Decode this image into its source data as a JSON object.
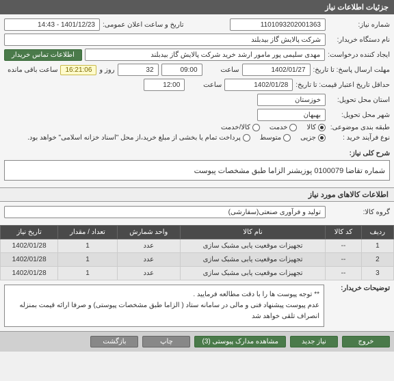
{
  "header": {
    "title": "جزئیات اطلاعات نیاز"
  },
  "fields": {
    "need_no_lbl": "شماره نیاز:",
    "need_no": "1101093202001363",
    "announce_lbl": "تاریخ و ساعت اعلان عمومی:",
    "announce_val": "1401/12/23 - 14:43",
    "org_name_lbl": "نام دستگاه خریدار:",
    "org_name": "شرکت پالایش گاز بیدبلند",
    "creator_lbl": "ایجاد کننده درخواست:",
    "creator": "مهدی سلیمی پور مامور ارشد خرید شرکت پالایش گاز بیدبلند",
    "contact_btn": "اطلاعات تماس خریدار",
    "reply_deadline_lbl": "مهلت ارسال پاسخ: تا تاریخ:",
    "reply_date": "1402/01/27",
    "hour_lbl": "ساعت",
    "reply_time": "09:00",
    "days_remain": "32",
    "days_txt": "روز و",
    "timer": "16:21:06",
    "remain_txt": "ساعت باقی مانده",
    "price_valid_lbl": "حداقل تاریخ اعتبار قیمت: تا تاریخ:",
    "price_date": "1402/01/28",
    "price_time": "12:00",
    "province_lbl": "استان محل تحویل:",
    "province": "خوزستان",
    "city_lbl": "شهر محل تحویل:",
    "city": "بهبهان",
    "category_lbl": "طبقه بندی موضوعی:",
    "cat_goods": "کالا",
    "cat_service": "خدمت",
    "cat_both": "کالا/خدمت",
    "proc_type_lbl": "نوع فرآیند خرید :",
    "proc_mid": "جزیی",
    "proc_small": "متوسط",
    "proc_note": "پرداخت تمام یا بخشی از مبلغ خرید،از محل \"اسناد خزانه اسلامی\" خواهد بود.",
    "summary_lbl": "شرح کلی نیاز:",
    "summary": "شماره تقاضا 0100079 پوزیشنر الزاما طبق مشخصات پیوست",
    "goods_info_title": "اطلاعات کالاهای مورد نیاز",
    "goods_group_lbl": "گروه کالا:",
    "goods_group": "تولید و فرآوری صنعتی(سفارشی)",
    "buyer_notes_lbl": "توضیحات خریدار:",
    "buyer_notes_l1": "** توجه پیوست ها  را با دقت مطالعه فرمایید .",
    "buyer_notes_l2": "عدم پیوست پیشنهاد فنی و مالی در سامانه ستاد ( الزاما طبق مشخصات پیوستی)  و صرفا ارائه قیمت بمنزله انصراف تلقی خواهد شد"
  },
  "table": {
    "headers": {
      "row": "ردیف",
      "code": "کد کالا",
      "name": "نام کالا",
      "unit": "واحد شمارش",
      "qty": "تعداد / مقدار",
      "date": "تاریخ نیاز"
    },
    "rows": [
      {
        "n": "1",
        "code": "--",
        "name": "تجهیزات موقعیت یابی مشبک سازی",
        "unit": "عدد",
        "qty": "1",
        "date": "1402/01/28"
      },
      {
        "n": "2",
        "code": "--",
        "name": "تجهیزات موقعیت یابی مشبک سازی",
        "unit": "عدد",
        "qty": "1",
        "date": "1402/01/28"
      },
      {
        "n": "3",
        "code": "--",
        "name": "تجهیزات موقعیت یابی مشبک سازی",
        "unit": "عدد",
        "qty": "1",
        "date": "1402/01/28"
      }
    ]
  },
  "footer": {
    "back": "بازگشت",
    "print": "چاپ",
    "attach": "مشاهده مدارک پیوستی (3)",
    "new": "نیاز جدید",
    "exit": "خروج"
  }
}
